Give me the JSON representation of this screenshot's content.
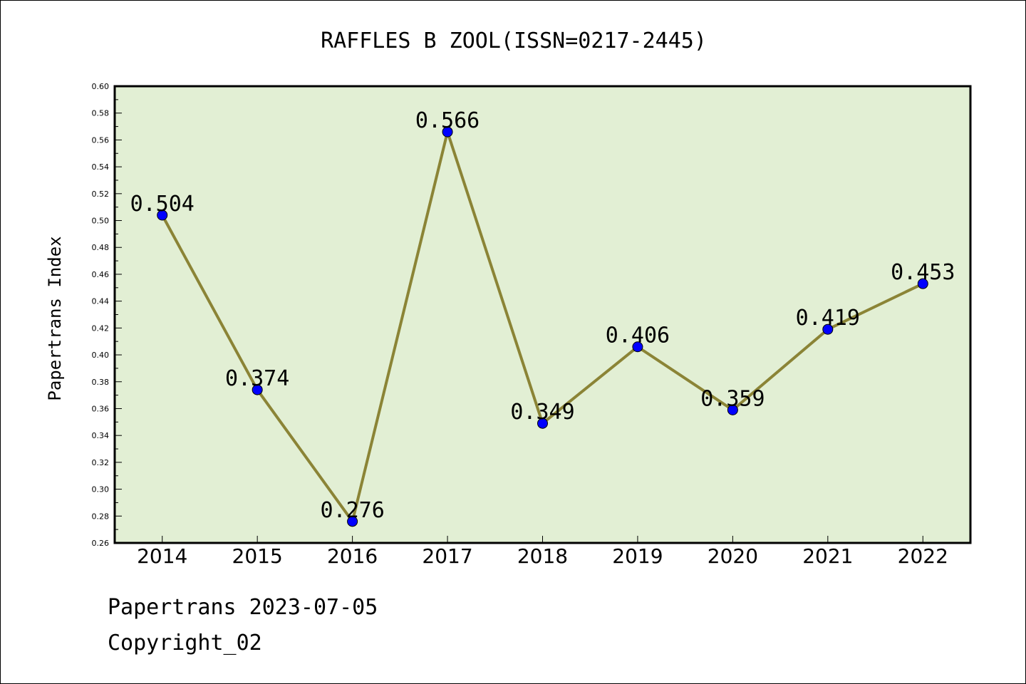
{
  "chart_data": {
    "type": "line",
    "title": "RAFFLES B ZOOL(ISSN=0217-2445)",
    "xlabel": "",
    "ylabel": "Papertrans Index",
    "categories": [
      "2014",
      "2015",
      "2016",
      "2017",
      "2018",
      "2019",
      "2020",
      "2021",
      "2022"
    ],
    "series": [
      {
        "values": [
          0.504,
          0.374,
          0.276,
          0.566,
          0.349,
          0.406,
          0.359,
          0.419,
          0.453
        ],
        "labels": [
          "0.504",
          "0.374",
          "0.276",
          "0.566",
          "0.349",
          "0.406",
          "0.359",
          "0.419",
          "0.453"
        ]
      }
    ],
    "ylim": [
      0.26,
      0.6
    ],
    "yticks": [
      "0.26",
      "0.28",
      "0.30",
      "0.32",
      "0.34",
      "0.36",
      "0.38",
      "0.40",
      "0.42",
      "0.44",
      "0.46",
      "0.48",
      "0.50",
      "0.52",
      "0.54",
      "0.56",
      "0.58",
      "0.60"
    ],
    "grid": false,
    "legend": "none",
    "colors": {
      "plot_background": "#e2efd4",
      "line": "#8b8436",
      "marker": "#0000ff"
    }
  },
  "footer": {
    "date_text": "Papertrans 2023-07-05",
    "copyright_text": "Copyright_02"
  }
}
